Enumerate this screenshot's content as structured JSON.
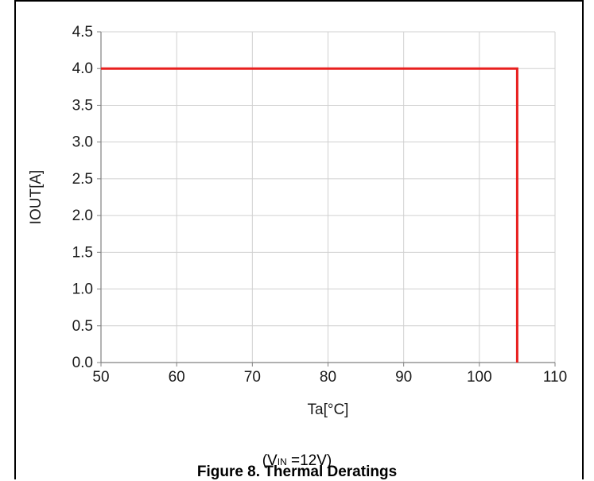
{
  "chart_data": {
    "type": "line",
    "title": "Figure 8. Thermal Deratings",
    "condition": {
      "prefix": "(V",
      "subscript": "IN",
      "suffix": " =12V)"
    },
    "xlabel": "Ta[°C]",
    "ylabel": "IOUT[A]",
    "xlim": [
      50,
      110
    ],
    "ylim": [
      0.0,
      4.5
    ],
    "x_ticks": [
      "50",
      "60",
      "70",
      "80",
      "90",
      "100",
      "110"
    ],
    "y_ticks": [
      "0.0",
      "0.5",
      "1.0",
      "1.5",
      "2.0",
      "2.5",
      "3.0",
      "3.5",
      "4.0",
      "4.5"
    ],
    "grid": true,
    "series": [
      {
        "color": "#e8201f",
        "points": [
          [
            50,
            4.0
          ],
          [
            105,
            4.0
          ],
          [
            105,
            0.0
          ]
        ]
      }
    ]
  }
}
